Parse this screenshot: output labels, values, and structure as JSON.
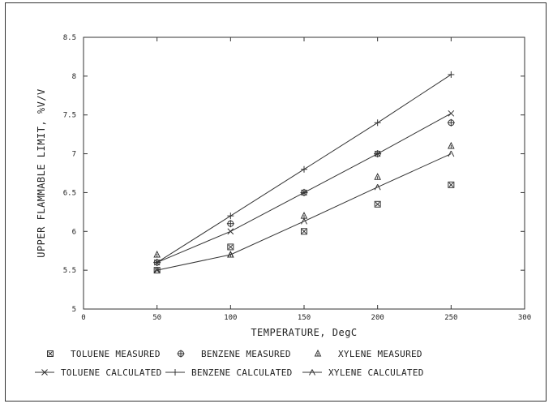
{
  "chart_data": {
    "type": "scatter",
    "title": "",
    "xlabel": "TEMPERATURE, DegC",
    "ylabel": "UPPER FLAMMABLE LIMIT, %V/V",
    "xlim": [
      0,
      300
    ],
    "ylim": [
      5,
      8.5
    ],
    "x_ticks": [
      0,
      50,
      100,
      150,
      200,
      250,
      300
    ],
    "y_ticks": [
      5,
      5.5,
      6,
      6.5,
      7,
      7.5,
      8,
      8.5
    ],
    "x_tick_labels": [
      "0",
      "50",
      "100",
      "150",
      "200",
      "250",
      "300"
    ],
    "y_tick_labels": [
      "5",
      "5.5",
      "6",
      "6.5",
      "7",
      "7.5",
      "8",
      "8.5"
    ],
    "grid": false,
    "legend_position": "bottom",
    "x": [
      50,
      100,
      150,
      200,
      250
    ],
    "series": [
      {
        "name": "TOLUENE MEASURED",
        "kind": "marker",
        "marker": "boxed-x",
        "values": [
          5.5,
          5.8,
          6.0,
          6.35,
          6.6
        ]
      },
      {
        "name": "BENZENE MEASURED",
        "kind": "marker",
        "marker": "circle-plus",
        "values": [
          5.6,
          6.1,
          6.5,
          7.0,
          7.4
        ]
      },
      {
        "name": "XYLENE MEASURED",
        "kind": "marker",
        "marker": "triangle",
        "values": [
          5.7,
          5.7,
          6.2,
          6.7,
          7.1
        ]
      },
      {
        "name": "TOLUENE CALCULATED",
        "kind": "line",
        "marker": "x",
        "values": [
          5.6,
          6.0,
          6.5,
          7.0,
          7.52
        ]
      },
      {
        "name": "BENZENE CALCULATED",
        "kind": "line",
        "marker": "plus",
        "values": [
          5.6,
          6.2,
          6.8,
          7.4,
          8.02
        ]
      },
      {
        "name": "XYLENE CALCULATED",
        "kind": "line",
        "marker": "lambda",
        "values": [
          5.5,
          5.7,
          6.13,
          6.57,
          7.0
        ]
      }
    ]
  }
}
